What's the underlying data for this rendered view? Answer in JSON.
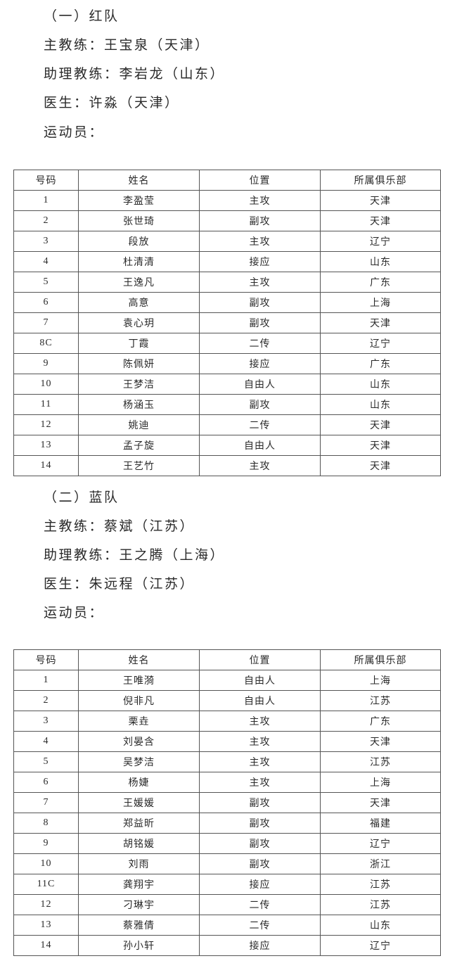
{
  "teams": [
    {
      "heading": "（一）红队",
      "head_coach": "主教练：王宝泉（天津）",
      "assistant_coach": "助理教练：李岩龙（山东）",
      "doctor": "医生：许淼（天津）",
      "athletes_label": "运动员：",
      "columns": [
        "号码",
        "姓名",
        "位置",
        "所属俱乐部"
      ],
      "rows": [
        [
          "1",
          "李盈莹",
          "主攻",
          "天津"
        ],
        [
          "2",
          "张世琦",
          "副攻",
          "天津"
        ],
        [
          "3",
          "段放",
          "主攻",
          "辽宁"
        ],
        [
          "4",
          "杜清清",
          "接应",
          "山东"
        ],
        [
          "5",
          "王逸凡",
          "主攻",
          "广东"
        ],
        [
          "6",
          "高意",
          "副攻",
          "上海"
        ],
        [
          "7",
          "袁心玥",
          "副攻",
          "天津"
        ],
        [
          "8C",
          "丁霞",
          "二传",
          "辽宁"
        ],
        [
          "9",
          "陈佩妍",
          "接应",
          "广东"
        ],
        [
          "10",
          "王梦洁",
          "自由人",
          "山东"
        ],
        [
          "11",
          "杨涵玉",
          "副攻",
          "山东"
        ],
        [
          "12",
          "姚迪",
          "二传",
          "天津"
        ],
        [
          "13",
          "孟子旋",
          "自由人",
          "天津"
        ],
        [
          "14",
          "王艺竹",
          "主攻",
          "天津"
        ]
      ]
    },
    {
      "heading": "（二）蓝队",
      "head_coach": "主教练：蔡斌（江苏）",
      "assistant_coach": "助理教练：王之腾（上海）",
      "doctor": "医生：朱远程（江苏）",
      "athletes_label": "运动员：",
      "columns": [
        "号码",
        "姓名",
        "位置",
        "所属俱乐部"
      ],
      "rows": [
        [
          "1",
          "王唯漪",
          "自由人",
          "上海"
        ],
        [
          "2",
          "倪非凡",
          "自由人",
          "江苏"
        ],
        [
          "3",
          "栗垚",
          "主攻",
          "广东"
        ],
        [
          "4",
          "刘晏含",
          "主攻",
          "天津"
        ],
        [
          "5",
          "吴梦洁",
          "主攻",
          "江苏"
        ],
        [
          "6",
          "杨婕",
          "主攻",
          "上海"
        ],
        [
          "7",
          "王媛媛",
          "副攻",
          "天津"
        ],
        [
          "8",
          "郑益昕",
          "副攻",
          "福建"
        ],
        [
          "9",
          "胡铭媛",
          "副攻",
          "辽宁"
        ],
        [
          "10",
          "刘雨",
          "副攻",
          "浙江"
        ],
        [
          "11C",
          "龚翔宇",
          "接应",
          "江苏"
        ],
        [
          "12",
          "刁琳宇",
          "二传",
          "江苏"
        ],
        [
          "13",
          "蔡雅倩",
          "二传",
          "山东"
        ],
        [
          "14",
          "孙小轩",
          "接应",
          "辽宁"
        ]
      ]
    }
  ]
}
